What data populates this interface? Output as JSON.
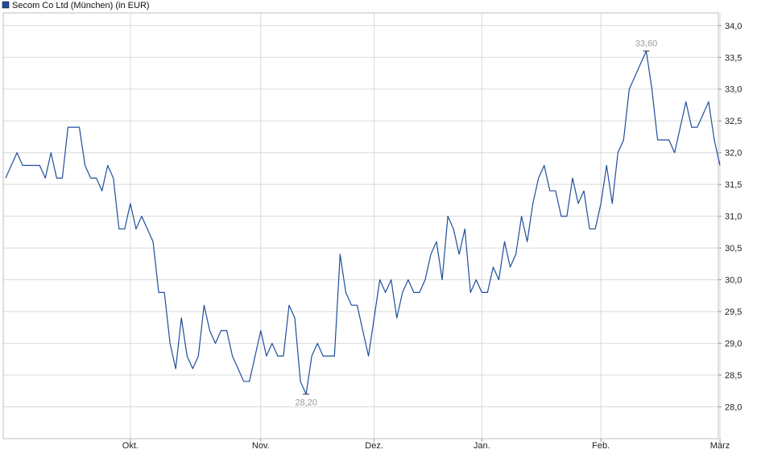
{
  "chart_data": {
    "type": "line",
    "legend": {
      "label": "Secom Co Ltd (München) (in EUR)",
      "placement": "top-left"
    },
    "colors": {
      "line": "#1f4e9c",
      "legend_swatch": "#1f4e9c",
      "grid": "#d9d9d9",
      "annotation": "#9a9a9a"
    },
    "grid": true,
    "yaxis": {
      "position": "right",
      "range": [
        27.5,
        34.2
      ],
      "ticks": [
        "34,0",
        "33,5",
        "33,0",
        "32,5",
        "32,0",
        "31,5",
        "31,0",
        "30,5",
        "30,0",
        "29,5",
        "29,0",
        "28,5",
        "28,0"
      ],
      "tick_values": [
        34.0,
        33.5,
        33.0,
        32.5,
        32.0,
        31.5,
        31.0,
        30.5,
        30.0,
        29.5,
        29.0,
        28.5,
        28.0
      ]
    },
    "xaxis": {
      "ticks": [
        "Okt.",
        "Nov.",
        "Dez.",
        "Jan.",
        "Feb.",
        "März"
      ],
      "tick_index": [
        22,
        45,
        65,
        84,
        105,
        126
      ]
    },
    "series": [
      {
        "values": [
          31.6,
          31.8,
          32.0,
          31.8,
          31.8,
          31.8,
          31.8,
          31.6,
          32.0,
          31.6,
          31.6,
          32.4,
          32.4,
          32.4,
          31.8,
          31.6,
          31.6,
          31.4,
          31.8,
          31.6,
          30.8,
          30.8,
          31.2,
          30.8,
          31.0,
          30.8,
          30.6,
          29.8,
          29.8,
          29.0,
          28.6,
          29.4,
          28.8,
          28.6,
          28.8,
          29.6,
          29.2,
          29.0,
          29.2,
          29.2,
          28.8,
          28.6,
          28.4,
          28.4,
          28.8,
          29.2,
          28.8,
          29.0,
          28.8,
          28.8,
          29.6,
          29.4,
          28.4,
          28.2,
          28.8,
          29.0,
          28.8,
          28.8,
          28.8,
          30.4,
          29.8,
          29.6,
          29.6,
          29.2,
          28.8,
          29.4,
          30.0,
          29.8,
          30.0,
          29.4,
          29.8,
          30.0,
          29.8,
          29.8,
          30.0,
          30.4,
          30.6,
          30.0,
          31.0,
          30.8,
          30.4,
          30.8,
          29.8,
          30.0,
          29.8,
          29.8,
          30.2,
          30.0,
          30.6,
          30.2,
          30.4,
          31.0,
          30.6,
          31.2,
          31.6,
          31.8,
          31.4,
          31.4,
          31.0,
          31.0,
          31.6,
          31.2,
          31.4,
          30.8,
          30.8,
          31.2,
          31.8,
          31.2,
          32.0,
          32.2,
          33.0,
          33.2,
          33.4,
          33.6,
          33.0,
          32.2,
          32.2,
          32.2,
          32.0,
          32.4,
          32.8,
          32.4,
          32.4,
          32.6,
          32.8,
          32.2,
          31.8
        ]
      }
    ],
    "annotations": [
      {
        "text": "33,60",
        "index": 113,
        "value": 33.6,
        "side": "above"
      },
      {
        "text": "28,20",
        "index": 53,
        "value": 28.2,
        "side": "below"
      }
    ]
  }
}
